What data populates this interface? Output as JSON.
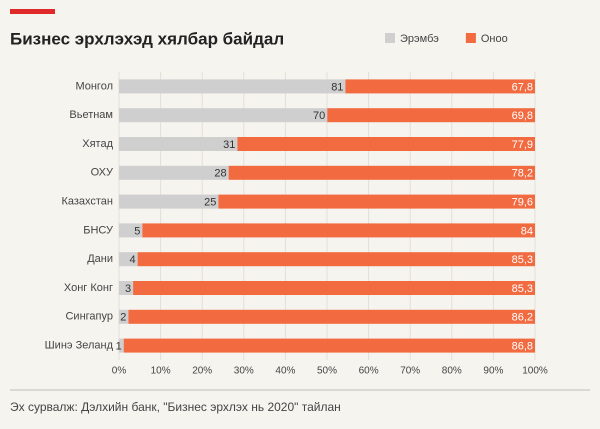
{
  "chart_data": {
    "type": "bar",
    "orientation": "horizontal",
    "stacked": "percent",
    "title": "Бизнес эрхлэхэд хялбар байдал",
    "categories": [
      "Монгол",
      "Вьетнам",
      "Хятад",
      "ОХУ",
      "Казахстан",
      "БНСУ",
      "Дани",
      "Хонг Конг",
      "Сингапур",
      "Шинэ Зеланд"
    ],
    "series": [
      {
        "name": "Эрэмбэ",
        "color": "#cfcfcf",
        "values": [
          81,
          70,
          31,
          28,
          25,
          5,
          4,
          3,
          2,
          1
        ]
      },
      {
        "name": "Оноо",
        "color": "#f26a40",
        "values": [
          67.8,
          69.8,
          77.9,
          78.2,
          79.6,
          84,
          85.3,
          85.3,
          86.2,
          86.8
        ],
        "value_labels": [
          "67,8",
          "69,8",
          "77,9",
          "78,2",
          "79,6",
          "84",
          "85,3",
          "85,3",
          "86,2",
          "86,8"
        ]
      }
    ],
    "xlim": [
      0,
      100
    ],
    "xticks": [
      {
        "value": 0,
        "label": "0%"
      },
      {
        "value": 10,
        "label": "10%"
      },
      {
        "value": 20,
        "label": "20%"
      },
      {
        "value": 30,
        "label": "30%"
      },
      {
        "value": 40,
        "label": "40%"
      },
      {
        "value": 50,
        "label": "50%"
      },
      {
        "value": 60,
        "label": "60%"
      },
      {
        "value": 70,
        "label": "70%"
      },
      {
        "value": 80,
        "label": "80%"
      },
      {
        "value": 90,
        "label": "90%"
      },
      {
        "value": 100,
        "label": "100%"
      }
    ],
    "grid": true,
    "legend": "top-right",
    "source": "Эх сурвалж: Дэлхийн банк, \"Бизнес эрхлэх нь 2020\" тайлан"
  }
}
